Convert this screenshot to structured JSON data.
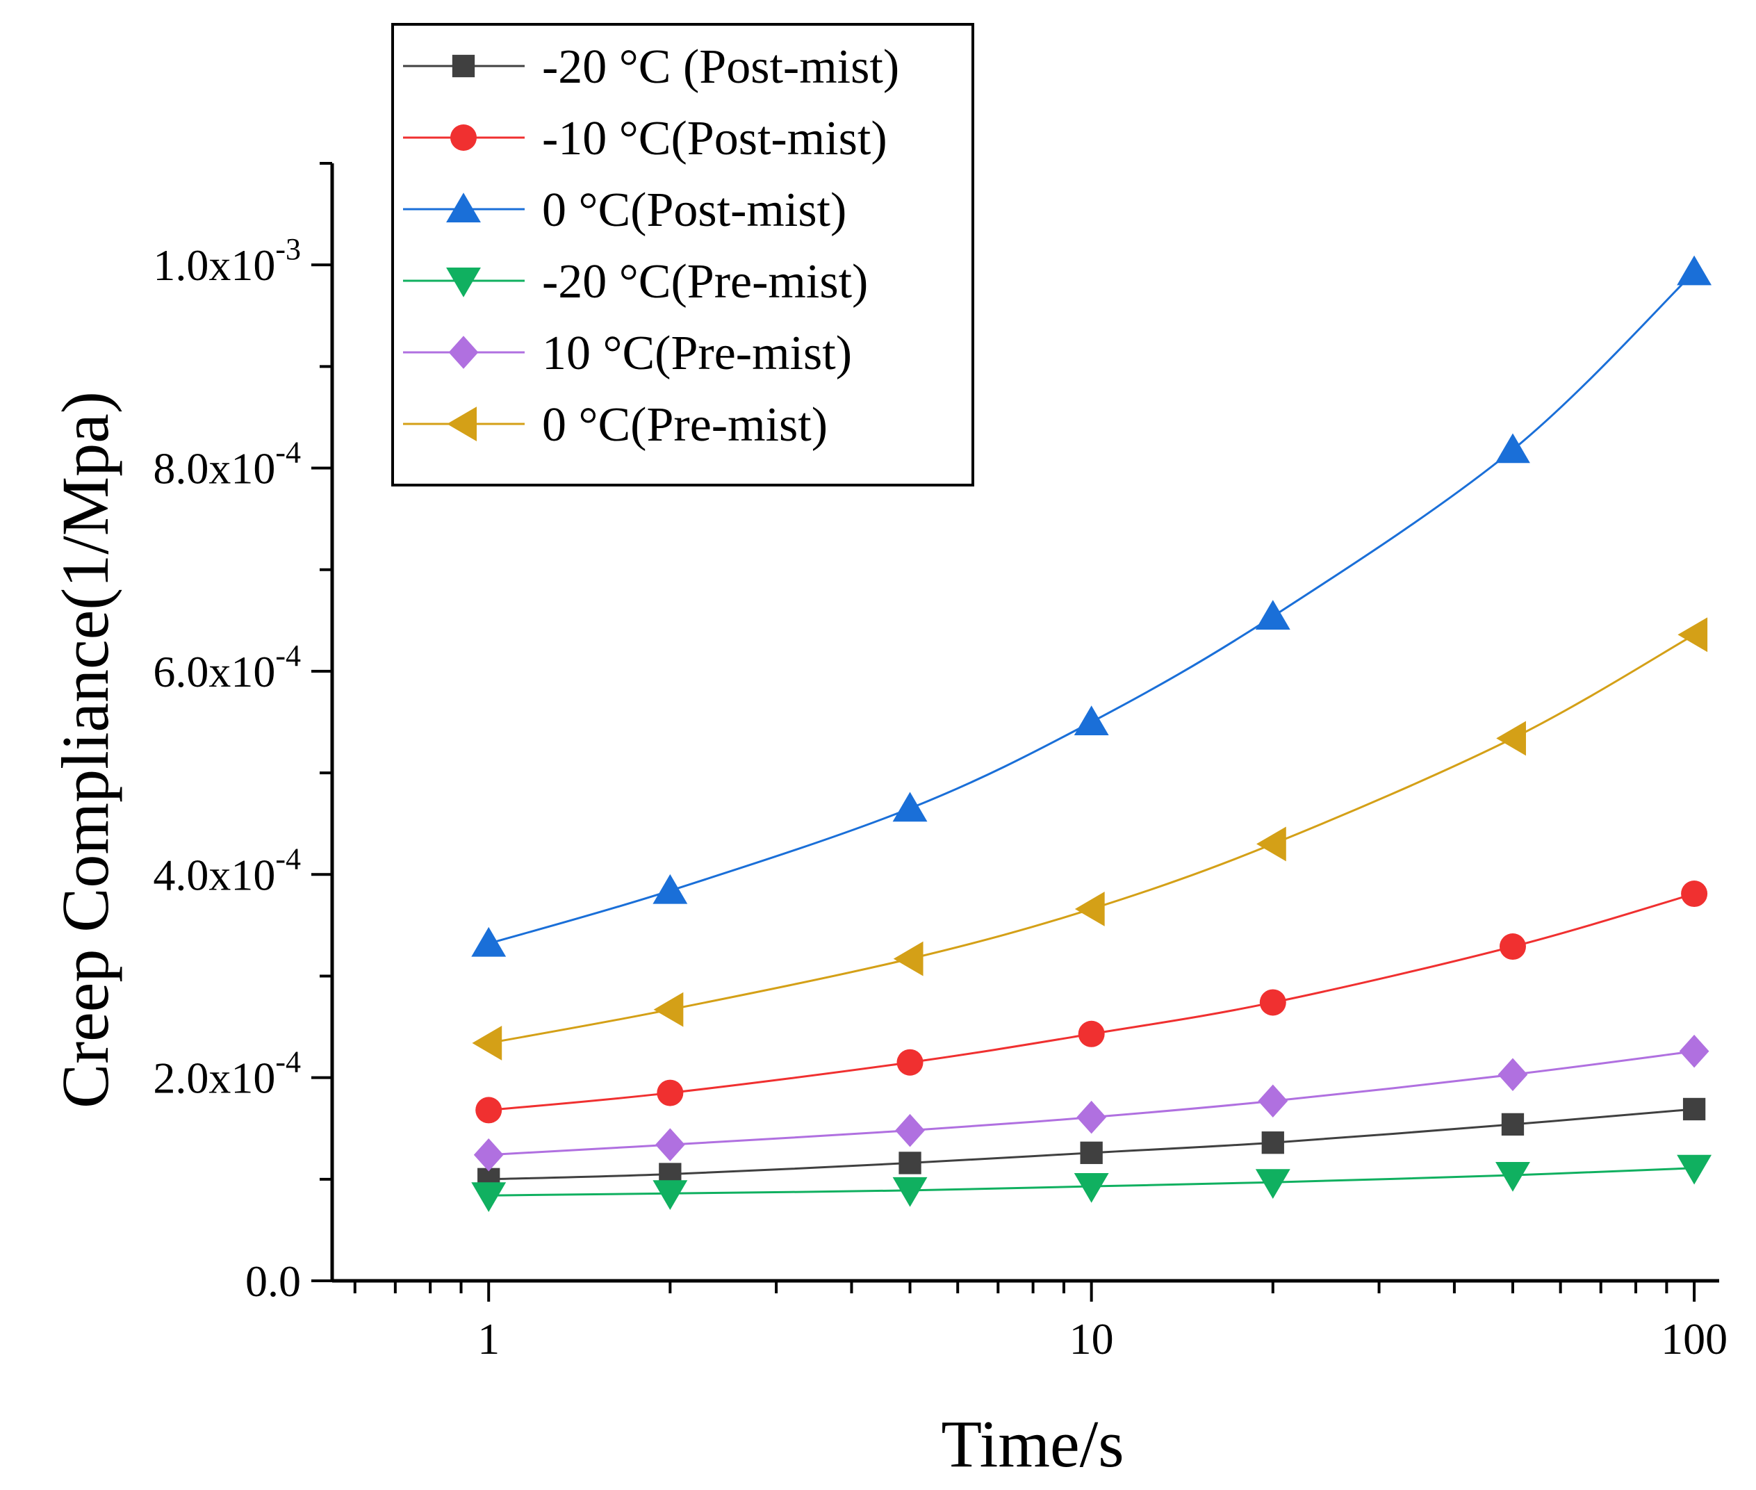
{
  "chart_data": {
    "type": "line",
    "xlabel": "Time/s",
    "ylabel": "Creep Compliance(1/Mpa)",
    "x_scale": "log",
    "xlim": [
      0.55,
      110
    ],
    "ylim": [
      0,
      0.0011
    ],
    "x_ticks": [
      {
        "value": 1,
        "label": "1"
      },
      {
        "value": 10,
        "label": "10"
      },
      {
        "value": 100,
        "label": "100"
      }
    ],
    "y_ticks": [
      {
        "value": 0,
        "mantissa": "0.0",
        "exp": ""
      },
      {
        "value": 0.0002,
        "mantissa": "2.0x10",
        "exp": "-4"
      },
      {
        "value": 0.0004,
        "mantissa": "4.0x10",
        "exp": "-4"
      },
      {
        "value": 0.0006,
        "mantissa": "6.0x10",
        "exp": "-4"
      },
      {
        "value": 0.0008,
        "mantissa": "8.0x10",
        "exp": "-4"
      },
      {
        "value": 0.001,
        "mantissa": "1.0x10",
        "exp": "-3"
      }
    ],
    "grid": false,
    "legend_position": "top-left",
    "x": [
      1,
      2,
      5,
      10,
      20,
      50,
      100
    ],
    "series": [
      {
        "name": "-20 °C (Post-mist)",
        "color": "#404040",
        "marker": "square",
        "values": [
          0.0001,
          0.000105,
          0.000116,
          0.000126,
          0.000136,
          0.000154,
          0.000169
        ]
      },
      {
        "name": "-10 °C(Post-mist)",
        "color": "#f03030",
        "marker": "circle",
        "values": [
          0.000168,
          0.000185,
          0.000215,
          0.000243,
          0.000274,
          0.000329,
          0.000381
        ]
      },
      {
        "name": "0 °C(Post-mist)",
        "color": "#1a6fd8",
        "marker": "triangle-up",
        "values": [
          0.000332,
          0.000384,
          0.000465,
          0.00055,
          0.000654,
          0.000818,
          0.000993
        ]
      },
      {
        "name": "-20 °C(Pre-mist)",
        "color": "#10b060",
        "marker": "triangle-down",
        "values": [
          8.4e-05,
          8.6e-05,
          8.9e-05,
          9.3e-05,
          9.7e-05,
          0.000104,
          0.000111
        ]
      },
      {
        "name": "10 °C(Pre-mist)",
        "color": "#b070e0",
        "marker": "diamond",
        "values": [
          0.000124,
          0.000134,
          0.000148,
          0.000161,
          0.000177,
          0.000203,
          0.000226
        ]
      },
      {
        "name": "0 °C(Pre-mist)",
        "color": "#d4a017",
        "marker": "triangle-left",
        "values": [
          0.000234,
          0.000267,
          0.000317,
          0.000366,
          0.00043,
          0.000534,
          0.000636
        ]
      }
    ]
  }
}
